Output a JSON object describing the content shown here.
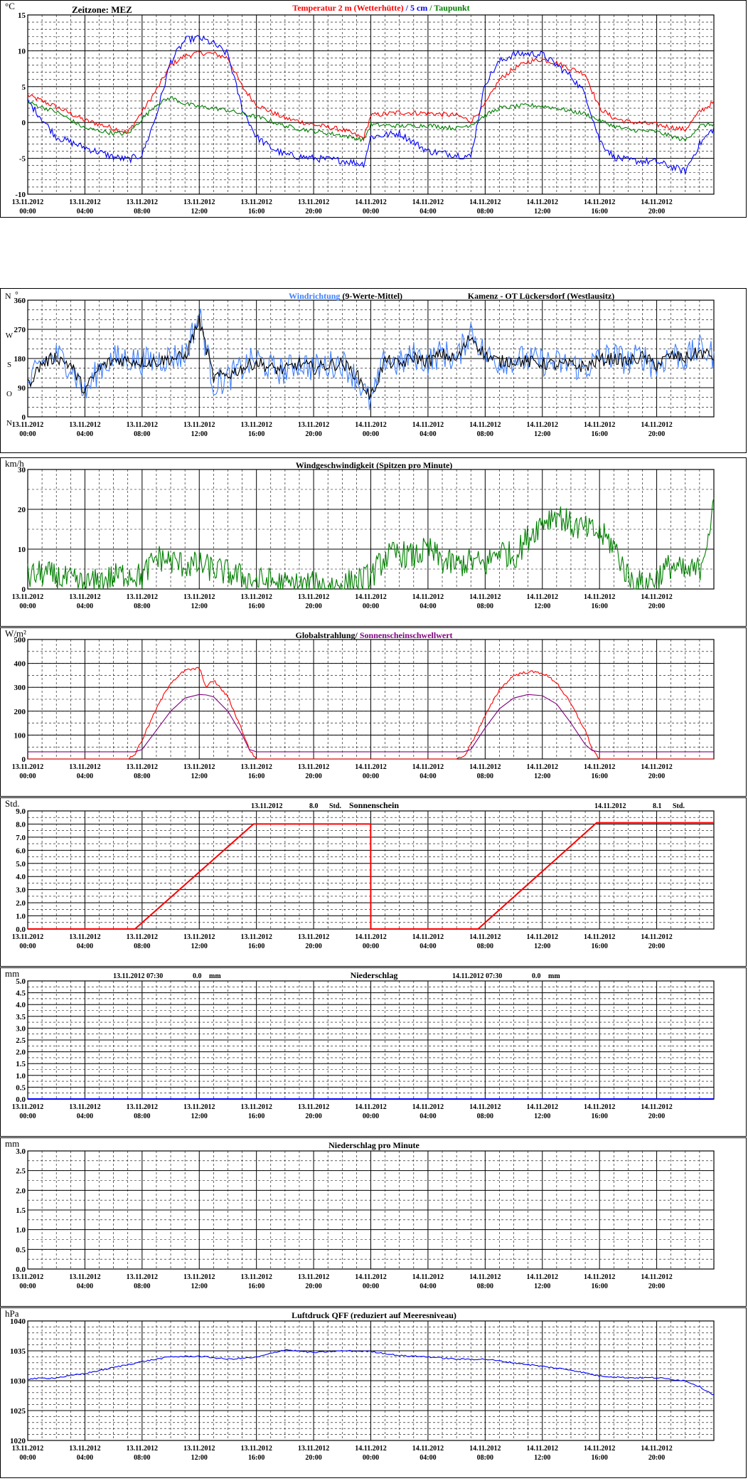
{
  "timezone_label": "Zeitzone: MEZ",
  "x_ticks": [
    {
      "date": "13.11.2012",
      "time": "00:00"
    },
    {
      "date": "13.11.2012",
      "time": "04:00"
    },
    {
      "date": "13.11.2012",
      "time": "08:00"
    },
    {
      "date": "13.11.2012",
      "time": "12:00"
    },
    {
      "date": "13.11.2012",
      "time": "16:00"
    },
    {
      "date": "13.11.2012",
      "time": "20:00"
    },
    {
      "date": "14.11.2012",
      "time": "00:00"
    },
    {
      "date": "14.11.2012",
      "time": "04:00"
    },
    {
      "date": "14.11.2012",
      "time": "08:00"
    },
    {
      "date": "14.11.2012",
      "time": "12:00"
    },
    {
      "date": "14.11.2012",
      "time": "16:00"
    },
    {
      "date": "14.11.2012",
      "time": "20:00"
    }
  ],
  "colors": {
    "red": "#ff0000",
    "blue": "#0000ff",
    "green": "#008000",
    "lightblue": "#4080ff",
    "purple": "#800080",
    "black": "#000000",
    "grid": "#000000"
  },
  "chart_data": [
    {
      "id": "temperature",
      "type": "line",
      "unit": "°C",
      "title_parts": [
        {
          "text": "Temperatur 2 m (Wetterhütte)",
          "color": "#ff0000"
        },
        {
          "text": "  /  ",
          "color": "#0000ff"
        },
        {
          "text": "5 cm",
          "color": "#0000ff"
        },
        {
          "text": " / ",
          "color": "#008000"
        },
        {
          "text": "Taupunkt",
          "color": "#008000"
        }
      ],
      "ylim": [
        -10,
        15
      ],
      "yticks": [
        -10,
        -5,
        0,
        5,
        10,
        15
      ],
      "ytick_labels": [
        "-10",
        "-5",
        "0",
        "5",
        "10",
        "15"
      ],
      "grid": true,
      "x_hours": [
        0,
        2,
        4,
        6,
        7,
        8,
        9,
        10,
        11,
        12,
        13,
        14,
        15,
        16,
        17,
        18,
        20,
        22,
        23.5,
        24,
        26,
        28,
        30,
        31,
        32,
        33,
        34,
        35,
        36,
        37,
        38,
        39,
        40,
        41,
        42,
        44,
        46,
        47,
        48
      ],
      "series": [
        {
          "name": "Temperatur 2 m (Wetterhütte)",
          "color": "#ff0000",
          "values": [
            3.8,
            2.2,
            0.3,
            -0.8,
            -1.4,
            1.5,
            4.5,
            8.0,
            9.3,
            9.7,
            9.6,
            9.0,
            5.0,
            2.5,
            1.5,
            0.6,
            -0.3,
            -1.0,
            -2.2,
            1.0,
            1.4,
            1.3,
            1.0,
            0.2,
            2.5,
            6.0,
            7.5,
            8.5,
            8.8,
            8.3,
            7.5,
            6.8,
            2.0,
            0.6,
            0.1,
            -0.3,
            -1.0,
            1.5,
            2.8
          ]
        },
        {
          "name": "5 cm",
          "color": "#0000ff",
          "values": [
            3.0,
            -2.0,
            -3.5,
            -4.8,
            -5.2,
            -4.5,
            1.0,
            8.5,
            11.5,
            11.8,
            11.0,
            9.5,
            2.0,
            -2.0,
            -3.5,
            -4.5,
            -5.0,
            -5.3,
            -5.8,
            -2.0,
            -1.5,
            -4.0,
            -4.5,
            -4.8,
            5.5,
            8.5,
            9.5,
            9.6,
            9.5,
            8.0,
            6.5,
            4.0,
            -2.5,
            -4.8,
            -5.3,
            -5.5,
            -6.8,
            -3.0,
            -0.8
          ]
        },
        {
          "name": "Taupunkt",
          "color": "#008000",
          "values": [
            2.8,
            1.5,
            -0.8,
            -1.5,
            -1.6,
            0.5,
            2.5,
            3.5,
            2.6,
            2.2,
            2.0,
            1.7,
            1.2,
            0.8,
            0.2,
            -0.5,
            -1.2,
            -1.8,
            -2.4,
            -0.3,
            -0.5,
            -0.4,
            -0.8,
            -0.3,
            1.0,
            2.0,
            2.2,
            2.4,
            2.3,
            2.0,
            1.6,
            1.2,
            0.3,
            -0.5,
            -1.0,
            -1.3,
            -2.5,
            -0.5,
            -0.2
          ]
        }
      ]
    },
    {
      "id": "winddir",
      "type": "line",
      "title_parts": [
        {
          "text": "Windrichtung",
          "color": "#4080ff"
        },
        {
          "text": " (9-Werte-Mittel)",
          "color": "#000000"
        }
      ],
      "station": "Kamenz - OT Lückersdorf (Westlausitz)",
      "unit_left": "N",
      "unit_right": "°",
      "ylim": [
        0,
        360
      ],
      "yticks": [
        0,
        90,
        180,
        270,
        360
      ],
      "ytick_labels": [
        "0",
        "90",
        "180",
        "270",
        "360"
      ],
      "compass": [
        "N",
        "O",
        "S",
        "W"
      ],
      "grid": true,
      "x_hours": [
        0,
        1,
        2,
        3,
        4,
        5,
        6,
        7,
        8,
        9,
        10,
        11,
        12,
        13,
        14,
        15,
        16,
        17,
        18,
        19,
        20,
        21,
        22,
        23,
        24,
        25,
        26,
        27,
        28,
        29,
        30,
        31,
        32,
        33,
        34,
        35,
        36,
        37,
        38,
        39,
        40,
        41,
        42,
        43,
        44,
        45,
        46,
        47,
        48
      ],
      "series": [
        {
          "name": "Windrichtung",
          "color": "#4080ff",
          "values": [
            90,
            170,
            190,
            160,
            70,
            150,
            180,
            180,
            170,
            175,
            185,
            190,
            320,
            100,
            120,
            150,
            180,
            150,
            140,
            170,
            150,
            160,
            170,
            120,
            40,
            180,
            160,
            190,
            170,
            200,
            175,
            270,
            190,
            170,
            180,
            175,
            170,
            165,
            160,
            150,
            180,
            190,
            170,
            190,
            150,
            200,
            180,
            210,
            190
          ]
        },
        {
          "name": "9-Werte-Mittel",
          "color": "#000000",
          "values": [
            100,
            165,
            185,
            160,
            80,
            150,
            175,
            175,
            170,
            170,
            180,
            185,
            300,
            120,
            130,
            150,
            170,
            150,
            145,
            165,
            150,
            160,
            165,
            130,
            60,
            175,
            160,
            185,
            170,
            195,
            175,
            250,
            190,
            170,
            175,
            170,
            165,
            160,
            160,
            155,
            175,
            180,
            170,
            185,
            160,
            190,
            180,
            200,
            185
          ]
        }
      ]
    },
    {
      "id": "windspeed",
      "type": "line",
      "unit": "km/h",
      "title": "Windgeschwindigkeit (Spitzen pro Minute)",
      "ylim": [
        0,
        30
      ],
      "yticks": [
        0,
        10,
        20,
        30
      ],
      "ytick_labels": [
        "0",
        "10",
        "20",
        "30"
      ],
      "grid": true,
      "x_hours": [
        0,
        1,
        2,
        3,
        4,
        5,
        6,
        7,
        8,
        9,
        10,
        11,
        12,
        13,
        14,
        15,
        16,
        17,
        18,
        19,
        20,
        21,
        22,
        23,
        24,
        25,
        26,
        27,
        28,
        29,
        30,
        31,
        32,
        33,
        34,
        35,
        36,
        37,
        38,
        39,
        40,
        41,
        42,
        43,
        44,
        45,
        46,
        47,
        48
      ],
      "series": [
        {
          "name": "Windgeschwindigkeit",
          "color": "#008000",
          "values": [
            3,
            4,
            3,
            2,
            1,
            2,
            3,
            4,
            3,
            8,
            7,
            6,
            6,
            5,
            4,
            3,
            2,
            2,
            1,
            1,
            1,
            1,
            1,
            2,
            3,
            8,
            9,
            8,
            10,
            7,
            6,
            7,
            6,
            10,
            8,
            13,
            17,
            19,
            16,
            15,
            14,
            11,
            3,
            1,
            3,
            6,
            4,
            5,
            20
          ]
        }
      ]
    },
    {
      "id": "radiation",
      "type": "line",
      "unit": "W/m²",
      "title_parts": [
        {
          "text": "Globalstrahlung/",
          "color": "#000000"
        },
        {
          "text": " Sonnenscheinschwellwert",
          "color": "#800080"
        }
      ],
      "ylim": [
        0,
        500
      ],
      "yticks": [
        0,
        100,
        200,
        300,
        400,
        500
      ],
      "ytick_labels": [
        "0",
        "100",
        "200",
        "300",
        "400",
        "500"
      ],
      "grid": true,
      "x_hours": [
        0,
        6,
        7,
        7.5,
        8,
        9,
        10,
        11,
        12,
        12.5,
        13,
        14,
        15,
        15.5,
        16,
        24,
        30,
        30.5,
        31,
        32,
        33,
        34,
        35,
        36,
        37,
        38,
        39,
        39.5,
        40,
        48
      ],
      "series": [
        {
          "name": "Globalstrahlung",
          "color": "#ff0000",
          "values": [
            0,
            0,
            0,
            20,
            80,
            210,
            320,
            370,
            380,
            300,
            330,
            260,
            120,
            40,
            0,
            0,
            0,
            10,
            60,
            180,
            290,
            350,
            365,
            360,
            320,
            230,
            120,
            40,
            0,
            0
          ]
        },
        {
          "name": "Sonnenscheinschwellwert",
          "color": "#800080",
          "values": [
            30,
            30,
            30,
            30,
            40,
            120,
            200,
            255,
            270,
            268,
            260,
            200,
            100,
            40,
            30,
            30,
            30,
            30,
            40,
            130,
            210,
            255,
            270,
            265,
            230,
            150,
            60,
            35,
            30,
            30
          ]
        }
      ]
    },
    {
      "id": "sunshine",
      "type": "line",
      "unit": "Std.",
      "title": "Sonnenschein",
      "annotations": [
        {
          "date": "13.11.2012",
          "value": "8.0",
          "unit": "Std."
        },
        {
          "date": "14.11.2012",
          "value": "8.1",
          "unit": "Std."
        }
      ],
      "ylim": [
        0,
        9
      ],
      "yticks": [
        0,
        1,
        2,
        3,
        4,
        5,
        6,
        7,
        8,
        9
      ],
      "ytick_labels": [
        "0.0",
        "1.0",
        "2.0",
        "3.0",
        "4.0",
        "5.0",
        "6.0",
        "7.0",
        "8.0",
        "9.0"
      ],
      "grid": true,
      "x_hours": [
        0,
        7.5,
        15.8,
        23.99,
        24.0,
        31.5,
        39.8,
        48
      ],
      "series": [
        {
          "name": "Sonnenschein",
          "color": "#ff0000",
          "values": [
            0,
            0,
            8.0,
            8.0,
            0,
            0,
            8.1,
            8.1
          ]
        }
      ]
    },
    {
      "id": "precip",
      "type": "line",
      "unit": "mm",
      "title": "Niederschlag",
      "annotations": [
        {
          "date": "13.11.2012 07:30",
          "value": "0.0",
          "unit": "mm"
        },
        {
          "date": "14.11.2012 07:30",
          "value": "0.0",
          "unit": "mm"
        }
      ],
      "ylim": [
        0,
        5
      ],
      "yticks": [
        0,
        0.5,
        1,
        1.5,
        2,
        2.5,
        3,
        3.5,
        4,
        4.5,
        5
      ],
      "ytick_labels": [
        "0.0",
        "0.5",
        "1.0",
        "1.5",
        "2.0",
        "2.5",
        "3.0",
        "3.5",
        "4.0",
        "4.5",
        "5.0"
      ],
      "grid": true,
      "x_hours": [
        0,
        48
      ],
      "series": [
        {
          "name": "Niederschlag",
          "color": "#0000ff",
          "values": [
            0,
            0
          ]
        }
      ]
    },
    {
      "id": "precip_min",
      "type": "line",
      "unit": "mm",
      "title": "Niederschlag pro Minute",
      "ylim": [
        0,
        3
      ],
      "yticks": [
        0,
        0.5,
        1,
        1.5,
        2,
        2.5,
        3
      ],
      "ytick_labels": [
        "0.0",
        "0.5",
        "1.0",
        "1.5",
        "2.0",
        "2.5",
        "3.0"
      ],
      "grid": true,
      "x_hours": [],
      "series": []
    },
    {
      "id": "pressure",
      "type": "line",
      "unit": "hPa",
      "title": "Luftdruck QFF (reduziert auf Meeresniveau)",
      "ylim": [
        1020,
        1040
      ],
      "yticks": [
        1020,
        1025,
        1030,
        1035,
        1040
      ],
      "ytick_labels": [
        "1020",
        "1025",
        "1030",
        "1035",
        "1040"
      ],
      "grid": true,
      "x_hours": [
        0,
        2,
        4,
        6,
        8,
        10,
        12,
        14,
        16,
        18,
        20,
        22,
        24,
        26,
        28,
        30,
        32,
        34,
        36,
        38,
        40,
        42,
        44,
        46,
        47,
        48
      ],
      "series": [
        {
          "name": "Luftdruck",
          "color": "#0000ff",
          "values": [
            1030.3,
            1030.5,
            1031.2,
            1032.2,
            1033.2,
            1034.0,
            1034.1,
            1033.6,
            1033.9,
            1035.2,
            1034.7,
            1035.0,
            1034.9,
            1034.2,
            1034.0,
            1033.6,
            1033.6,
            1033.0,
            1032.4,
            1031.8,
            1030.8,
            1030.5,
            1030.5,
            1030.0,
            1029.0,
            1027.6
          ]
        }
      ]
    }
  ]
}
